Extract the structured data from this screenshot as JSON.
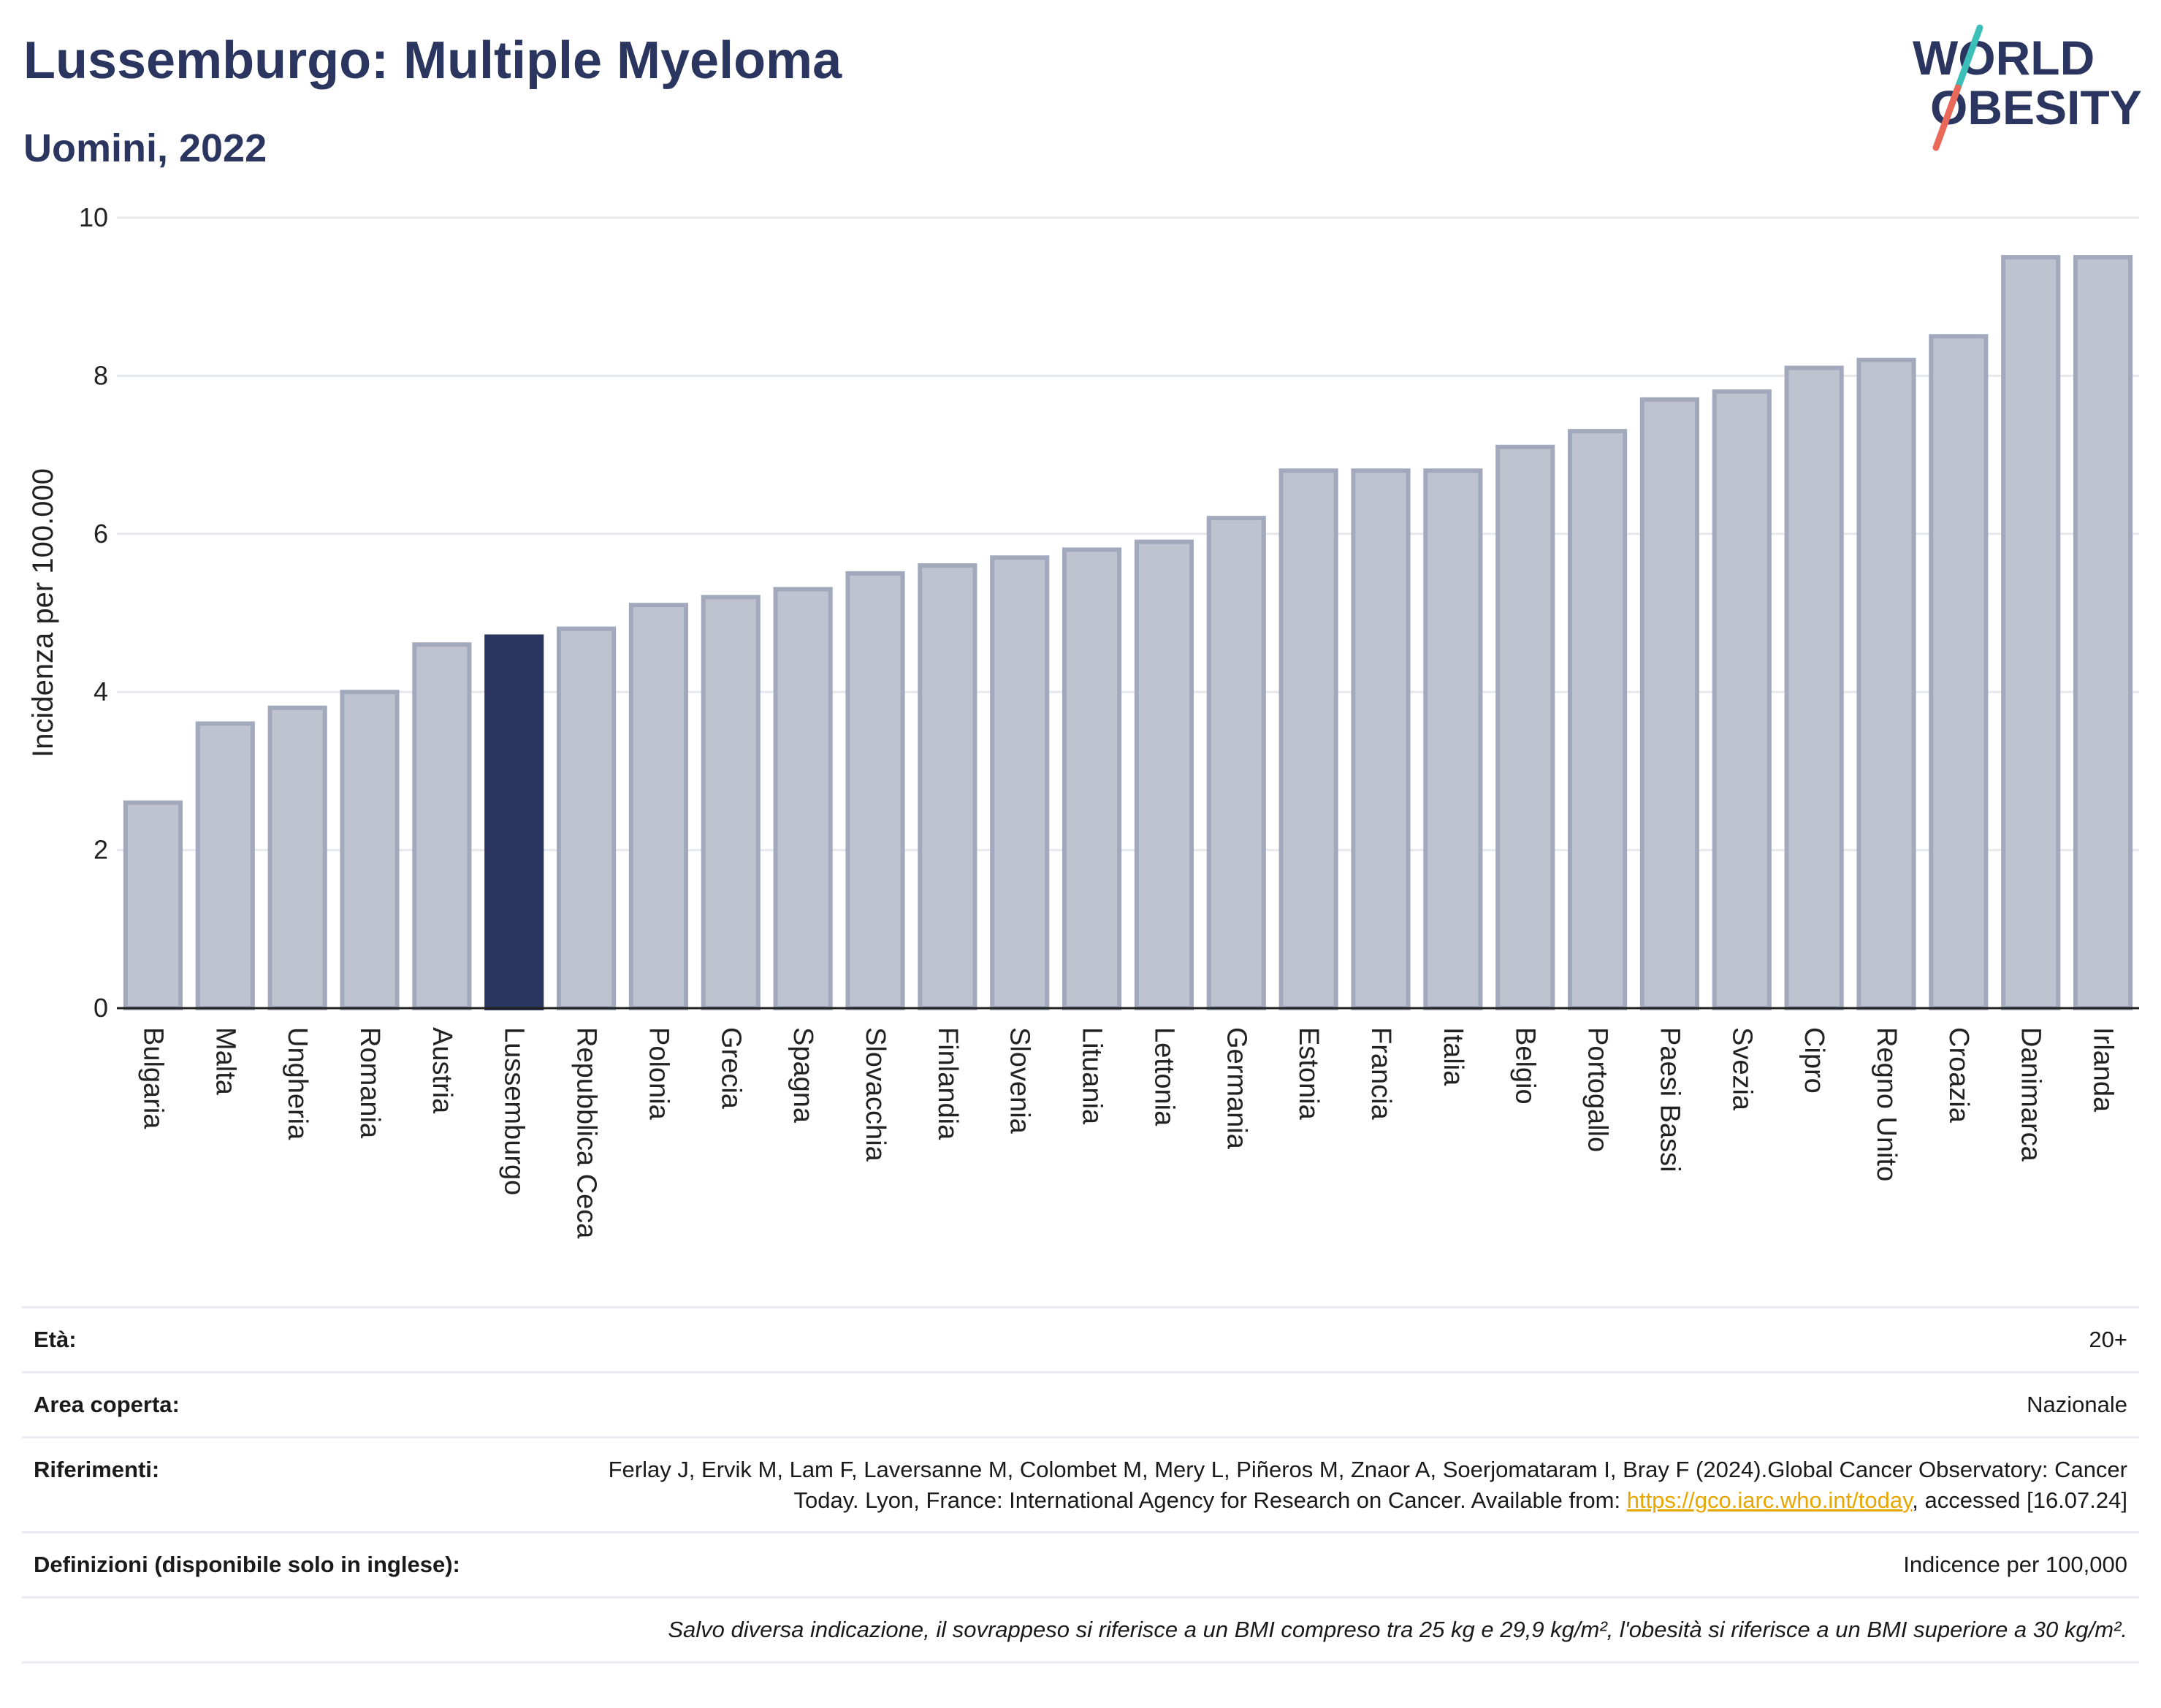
{
  "header": {
    "title": "Lussemburgo: Multiple Myeloma",
    "subtitle": "Uomini, 2022"
  },
  "logo": {
    "line1": "WORLD",
    "line2": "OBESITY",
    "colors": {
      "text": "#2b3660",
      "slash_top": "#3cbfb9",
      "slash_bottom": "#e8685a"
    }
  },
  "chart_data": {
    "type": "bar",
    "title": "",
    "xlabel": "",
    "ylabel": "Incidenza per 100.000",
    "ylim": [
      0,
      10
    ],
    "yticks": [
      0,
      2,
      4,
      6,
      8,
      10
    ],
    "grid": true,
    "categories": [
      "Bulgaria",
      "Malta",
      "Ungheria",
      "Romania",
      "Austria",
      "Lussemburgo",
      "Repubblica Ceca",
      "Polonia",
      "Grecia",
      "Spagna",
      "Slovacchia",
      "Finlandia",
      "Slovenia",
      "Lituania",
      "Lettonia",
      "Germania",
      "Estonia",
      "Francia",
      "Italia",
      "Belgio",
      "Portogallo",
      "Paesi Bassi",
      "Svezia",
      "Cipro",
      "Regno Unito",
      "Croazia",
      "Danimarca",
      "Irlanda"
    ],
    "values": [
      2.6,
      3.6,
      3.8,
      4.0,
      4.6,
      4.7,
      4.8,
      5.1,
      5.2,
      5.3,
      5.5,
      5.6,
      5.7,
      5.8,
      5.9,
      6.2,
      6.8,
      6.8,
      6.8,
      7.1,
      7.3,
      7.7,
      7.8,
      8.1,
      8.2,
      8.5,
      9.5,
      9.5
    ],
    "highlight": "Lussemburgo",
    "colors": {
      "bar": "#bfc3d0",
      "bar_border": "#a3a9bd",
      "highlight": "#2b3660"
    }
  },
  "info": {
    "eta_label": "Età:",
    "eta_value": "20+",
    "area_label": "Area coperta:",
    "area_value": "Nazionale",
    "ref_label": "Riferimenti:",
    "ref_text_1": "Ferlay J, Ervik M, Lam F, Laversanne M, Colombet M, Mery L, Piñeros M, Znaor A, Soerjomataram I, Bray F (2024).Global Cancer Observatory: Cancer Today. Lyon, France: International Agency for Research on Cancer. Available from: ",
    "ref_link": "https://gco.iarc.who.int/today",
    "ref_text_2": ", accessed [16.07.24]",
    "def_label": "Definizioni (disponibile solo in inglese):",
    "def_value": "Indicence per 100,000",
    "note": "Salvo diversa indicazione, il sovrappeso si riferisce a un BMI compreso tra 25 kg e 29,9 kg/m², l'obesità si riferisce a un BMI superiore a 30 kg/m²."
  }
}
